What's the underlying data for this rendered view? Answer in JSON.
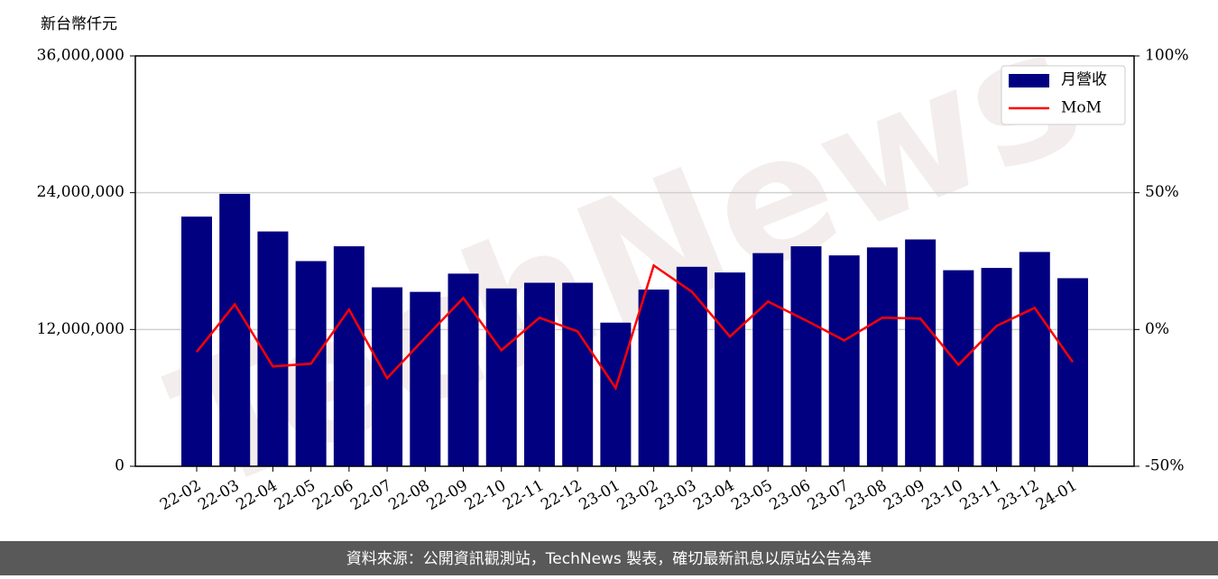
{
  "chart_data": {
    "type": "bar",
    "y_label": "新台幣仟元",
    "watermark": "TechNews",
    "footer": "資料來源：公開資訊觀測站，TechNews 製表，確切最新訊息以原站公告為準",
    "categories": [
      "22-02",
      "22-03",
      "22-04",
      "22-05",
      "22-06",
      "22-07",
      "22-08",
      "22-09",
      "22-10",
      "22-11",
      "22-12",
      "23-01",
      "23-02",
      "23-03",
      "23-04",
      "23-05",
      "23-06",
      "23-07",
      "23-08",
      "23-09",
      "23-10",
      "23-11",
      "23-12",
      "24-01"
    ],
    "series": [
      {
        "name": "月營收",
        "type": "bar",
        "color": "#000080",
        "values": [
          21900000,
          23900000,
          20600000,
          18000000,
          19300000,
          15700000,
          15300000,
          16900000,
          15600000,
          16100000,
          16100000,
          12600000,
          15500000,
          17500000,
          17000000,
          18700000,
          19300000,
          18500000,
          19200000,
          19900000,
          17200000,
          17400000,
          18800000,
          16500000
        ]
      },
      {
        "name": "MoM",
        "type": "line",
        "axis": "y2",
        "color": "#ff0000",
        "values": [
          -8.2,
          9.2,
          -13.5,
          -12.5,
          7.3,
          -17.8,
          -3,
          11.5,
          -7.6,
          4.3,
          -0.7,
          -21.4,
          23.4,
          13.8,
          -2.6,
          10.2,
          3.3,
          -4,
          4.3,
          4,
          -12.9,
          1.3,
          7.9,
          -11.9
        ]
      }
    ],
    "ylim": [
      0,
      36000000
    ],
    "yticks": [
      0,
      {
        "value": 12000000,
        "label": "12,000,000"
      },
      {
        "value": 24000000,
        "label": "24,000,000"
      },
      {
        "value": 36000000,
        "label": "36,000,000"
      }
    ],
    "y2lim": [
      -50,
      100
    ],
    "y2ticks": [
      {
        "value": -50,
        "label": "-50%"
      },
      {
        "value": 0,
        "label": "0%"
      },
      {
        "value": 50,
        "label": "50%"
      },
      {
        "value": 100,
        "label": "100%"
      }
    ],
    "grid": true,
    "legend": "upper right"
  }
}
